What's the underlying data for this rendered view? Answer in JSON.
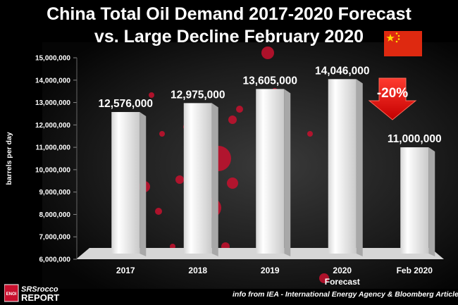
{
  "title_line1": "China Total Oil Demand 2017-2020 Forecast",
  "title_line2": "vs. Large Decline February 2020",
  "source_text": "info from  IEA - International Energy Agency & Bloomberg Article",
  "logo": {
    "icon_text": "ENOI",
    "brand_line1": "SRSrocco",
    "brand_line2": "REPORT"
  },
  "flag_icon": "china-flag-icon",
  "colors": {
    "background": "#000000",
    "bar": "#f2f2f2",
    "floor": "#d9d9d9",
    "arrow": "#e00000",
    "dots": "#c8102e",
    "text": "#ffffff"
  },
  "chart_data": {
    "type": "bar",
    "categories": [
      "2017",
      "2018",
      "2019",
      "2020",
      "Feb 2020"
    ],
    "category_sublabels": [
      "",
      "",
      "",
      "Forecast",
      ""
    ],
    "values": [
      12576000,
      12975000,
      13605000,
      14046000,
      11000000
    ],
    "value_labels": [
      "12,576,000",
      "12,975,000",
      "13,605,000",
      "14,046,000",
      "11,000,000"
    ],
    "title": "China Total Oil Demand 2017-2020 Forecast vs. Large Decline February 2020",
    "xlabel": "",
    "ylabel": "barrels per day",
    "ylim": [
      6000000,
      15000000
    ],
    "yticks": [
      6000000,
      7000000,
      8000000,
      9000000,
      10000000,
      11000000,
      12000000,
      13000000,
      14000000,
      15000000
    ],
    "ytick_labels": [
      "6,000,000",
      "7,000,000",
      "8,000,000",
      "9,000,000",
      "10,000,000",
      "11,000,000",
      "12,000,000",
      "13,000,000",
      "14,000,000",
      "15,000,000"
    ],
    "grid": false,
    "legend": "none",
    "annotation": {
      "text": "-20%",
      "shape": "down-arrow"
    }
  }
}
